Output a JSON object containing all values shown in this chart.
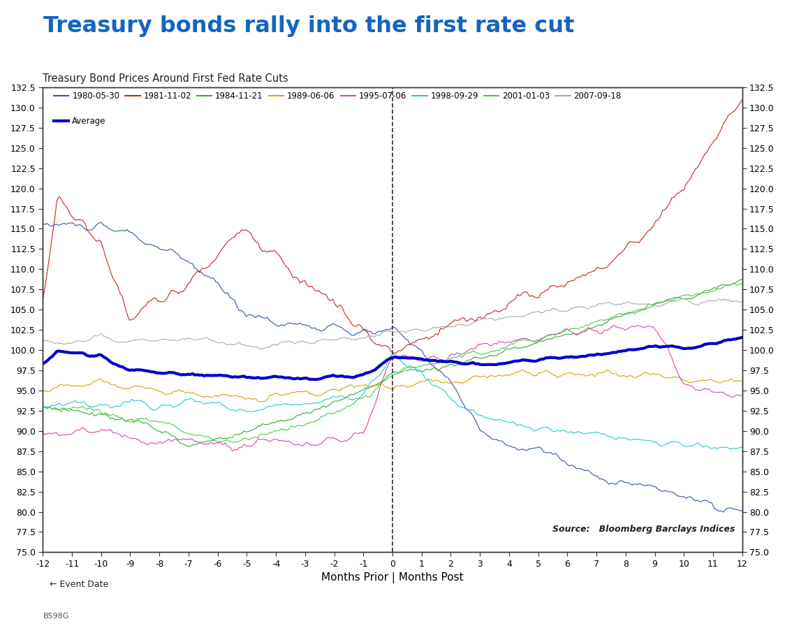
{
  "title_main": "Treasury bonds rally into the first rate cut",
  "title_sub": "Treasury Bond Prices Around First Fed Rate Cuts",
  "xlabel": "Months Prior | Months Post",
  "source_text": "Source:   Bloomberg Barclays Indices",
  "event_label": "← Event Date",
  "footnote": "B598G",
  "x_min": -12,
  "x_max": 12,
  "y_min": 75.0,
  "y_max": 132.5,
  "yticks": [
    75.0,
    77.5,
    80.0,
    82.5,
    85.0,
    87.5,
    90.0,
    92.5,
    95.0,
    97.5,
    100.0,
    102.5,
    105.0,
    107.5,
    110.0,
    112.5,
    115.0,
    117.5,
    120.0,
    122.5,
    125.0,
    127.5,
    130.0,
    132.5
  ],
  "series": [
    {
      "label": "1980-05-30",
      "color": "#3355aa"
    },
    {
      "label": "1981-11-02",
      "color": "#cc2222"
    },
    {
      "label": "1984-11-21",
      "color": "#33aa33"
    },
    {
      "label": "1989-06-06",
      "color": "#ccaa00"
    },
    {
      "label": "1995-07-06",
      "color": "#dd44aa"
    },
    {
      "label": "1998-09-29",
      "color": "#22cccc"
    },
    {
      "label": "2001-01-03",
      "color": "#44cc44"
    },
    {
      "label": "2007-09-18",
      "color": "#aaaaaa"
    }
  ],
  "avg_color": "#0000cc",
  "avg_linewidth": 3.0,
  "title_color": "#1565C0",
  "background_color": "#ffffff"
}
